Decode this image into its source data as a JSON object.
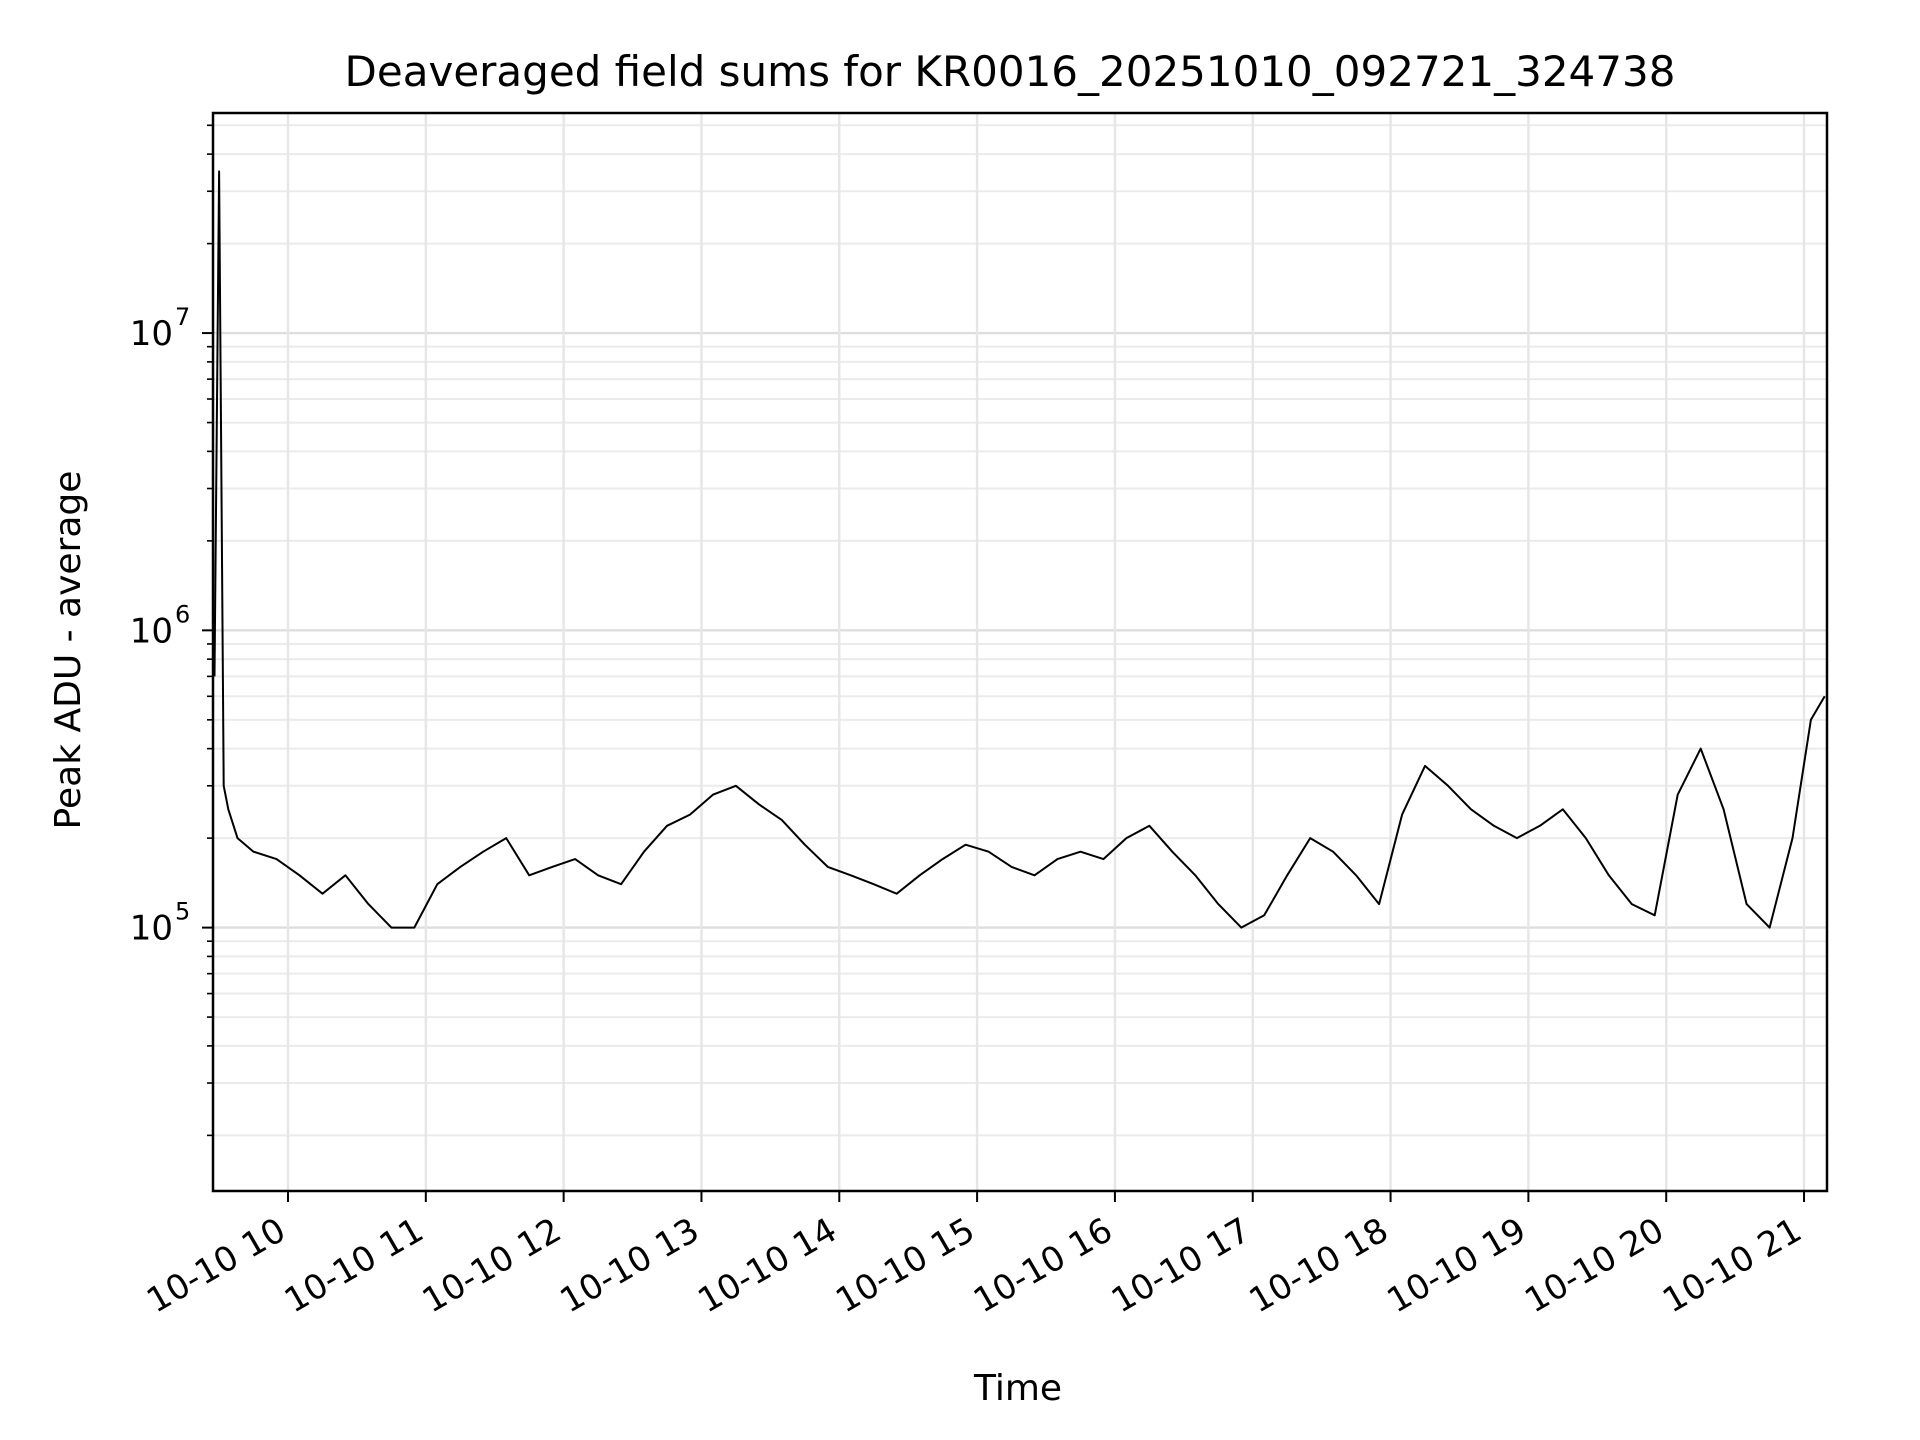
{
  "chart_data": {
    "type": "line",
    "title": "Deaveraged field sums for KR0016_20251010_092721_324738",
    "xlabel": "Time",
    "ylabel": "Peak ADU - average",
    "yscale": "log",
    "ylim": [
      13000,
      55000000
    ],
    "xlim": [
      "2025-10-10 09:27:21",
      "2025-10-10 21:10:00"
    ],
    "grid": true,
    "line_color": "#000000",
    "x_tick_labels": [
      "10-10 10",
      "10-10 11",
      "10-10 12",
      "10-10 13",
      "10-10 14",
      "10-10 15",
      "10-10 16",
      "10-10 17",
      "10-10 18",
      "10-10 19",
      "10-10 20",
      "10-10 21"
    ],
    "x_tick_times": [
      "2025-10-10 10:00",
      "2025-10-10 11:00",
      "2025-10-10 12:00",
      "2025-10-10 13:00",
      "2025-10-10 14:00",
      "2025-10-10 15:00",
      "2025-10-10 16:00",
      "2025-10-10 17:00",
      "2025-10-10 18:00",
      "2025-10-10 19:00",
      "2025-10-10 20:00",
      "2025-10-10 21:00"
    ],
    "y_ticks": [
      {
        "value": 100000,
        "base": "10",
        "exp": "5"
      },
      {
        "value": 1000000,
        "base": "10",
        "exp": "6"
      },
      {
        "value": 10000000,
        "base": "10",
        "exp": "7"
      }
    ],
    "series": [
      {
        "x": [
          "2025-10-10 09:28",
          "2025-10-10 09:30",
          "2025-10-10 09:32",
          "2025-10-10 09:34",
          "2025-10-10 09:38",
          "2025-10-10 09:45",
          "2025-10-10 09:55",
          "2025-10-10 10:05",
          "2025-10-10 10:15",
          "2025-10-10 10:25",
          "2025-10-10 10:35",
          "2025-10-10 10:45",
          "2025-10-10 10:55",
          "2025-10-10 11:05",
          "2025-10-10 11:15",
          "2025-10-10 11:25",
          "2025-10-10 11:35",
          "2025-10-10 11:45",
          "2025-10-10 11:55",
          "2025-10-10 12:05",
          "2025-10-10 12:15",
          "2025-10-10 12:25",
          "2025-10-10 12:35",
          "2025-10-10 12:45",
          "2025-10-10 12:55",
          "2025-10-10 13:05",
          "2025-10-10 13:15",
          "2025-10-10 13:25",
          "2025-10-10 13:35",
          "2025-10-10 13:45",
          "2025-10-10 13:55",
          "2025-10-10 14:05",
          "2025-10-10 14:15",
          "2025-10-10 14:25",
          "2025-10-10 14:35",
          "2025-10-10 14:45",
          "2025-10-10 14:55",
          "2025-10-10 15:05",
          "2025-10-10 15:15",
          "2025-10-10 15:25",
          "2025-10-10 15:35",
          "2025-10-10 15:45",
          "2025-10-10 15:55",
          "2025-10-10 16:05",
          "2025-10-10 16:15",
          "2025-10-10 16:25",
          "2025-10-10 16:35",
          "2025-10-10 16:45",
          "2025-10-10 16:55",
          "2025-10-10 17:05",
          "2025-10-10 17:15",
          "2025-10-10 17:25",
          "2025-10-10 17:35",
          "2025-10-10 17:45",
          "2025-10-10 17:55",
          "2025-10-10 18:05",
          "2025-10-10 18:15",
          "2025-10-10 18:25",
          "2025-10-10 18:35",
          "2025-10-10 18:45",
          "2025-10-10 18:55",
          "2025-10-10 19:05",
          "2025-10-10 19:15",
          "2025-10-10 19:25",
          "2025-10-10 19:35",
          "2025-10-10 19:45",
          "2025-10-10 19:55",
          "2025-10-10 20:05",
          "2025-10-10 20:15",
          "2025-10-10 20:25",
          "2025-10-10 20:35",
          "2025-10-10 20:45",
          "2025-10-10 20:55",
          "2025-10-10 21:03",
          "2025-10-10 21:09"
        ],
        "y": [
          700000,
          35000000,
          300000,
          250000,
          200000,
          180000,
          170000,
          150000,
          130000,
          150000,
          120000,
          100000,
          100000,
          140000,
          160000,
          180000,
          200000,
          150000,
          160000,
          170000,
          150000,
          140000,
          180000,
          220000,
          240000,
          280000,
          300000,
          260000,
          230000,
          190000,
          160000,
          150000,
          140000,
          130000,
          150000,
          170000,
          190000,
          180000,
          160000,
          150000,
          170000,
          180000,
          170000,
          200000,
          220000,
          180000,
          150000,
          120000,
          100000,
          110000,
          150000,
          200000,
          180000,
          150000,
          120000,
          240000,
          350000,
          300000,
          250000,
          220000,
          200000,
          220000,
          250000,
          200000,
          150000,
          120000,
          110000,
          280000,
          400000,
          250000,
          120000,
          100000,
          200000,
          500000,
          600000
        ]
      }
    ]
  }
}
